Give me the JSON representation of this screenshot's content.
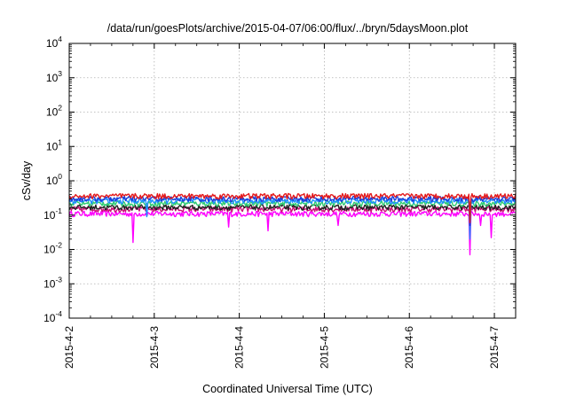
{
  "chart_data": {
    "type": "line",
    "title": "/data/run/goesPlots/archive/2015-04-07/06:00/flux/../bryn/5daysMoon.plot",
    "xlabel": "Coordinated Universal Time (UTC)",
    "ylabel": "cSv/day",
    "y_scale": "log",
    "ylim": [
      0.0001,
      10000
    ],
    "y_ticks": [
      {
        "base": "10",
        "exp": "4"
      },
      {
        "base": "10",
        "exp": "3"
      },
      {
        "base": "10",
        "exp": "2"
      },
      {
        "base": "10",
        "exp": "1"
      },
      {
        "base": "10",
        "exp": "0"
      },
      {
        "base": "10",
        "exp": "-1"
      },
      {
        "base": "10",
        "exp": "-2"
      },
      {
        "base": "10",
        "exp": "-3"
      },
      {
        "base": "10",
        "exp": "-4"
      }
    ],
    "xlim": [
      "2015-04-02 00:00",
      "2015-04-07 06:00"
    ],
    "x_ticks": [
      "2015-4-2",
      "2015-4-3",
      "2015-4-4",
      "2015-4-5",
      "2015-4-6",
      "2015-4-7"
    ],
    "grid": true,
    "legend": "none",
    "series": [
      {
        "color": "#e41a1c",
        "baseline": 0.36,
        "dips": [
          [
            "2015-04-06 17:00",
            0.06
          ]
        ]
      },
      {
        "color": "#1a3cd8",
        "baseline": 0.3,
        "dips": [
          [
            "2015-04-06 17:00",
            0.05
          ]
        ]
      },
      {
        "color": "#1e90ff",
        "baseline": 0.26,
        "dips": [
          [
            "2015-04-02 22:00",
            0.09
          ],
          [
            "2015-04-06 17:00",
            0.02
          ]
        ]
      },
      {
        "color": "#2ecc71",
        "baseline": 0.22,
        "dips": []
      },
      {
        "color": "#222222",
        "baseline": 0.17,
        "dips": []
      },
      {
        "color": "#cc1177",
        "baseline": 0.15,
        "dips": []
      },
      {
        "color": "#ff00ff",
        "baseline": 0.11,
        "dips": [
          [
            "2015-04-02 18:00",
            0.016
          ],
          [
            "2015-04-03 21:00",
            0.045
          ],
          [
            "2015-04-04 08:00",
            0.035
          ],
          [
            "2015-04-05 04:00",
            0.05
          ],
          [
            "2015-04-06 17:00",
            0.007
          ],
          [
            "2015-04-06 20:00",
            0.05
          ],
          [
            "2015-04-06 23:00",
            0.022
          ]
        ]
      }
    ]
  }
}
